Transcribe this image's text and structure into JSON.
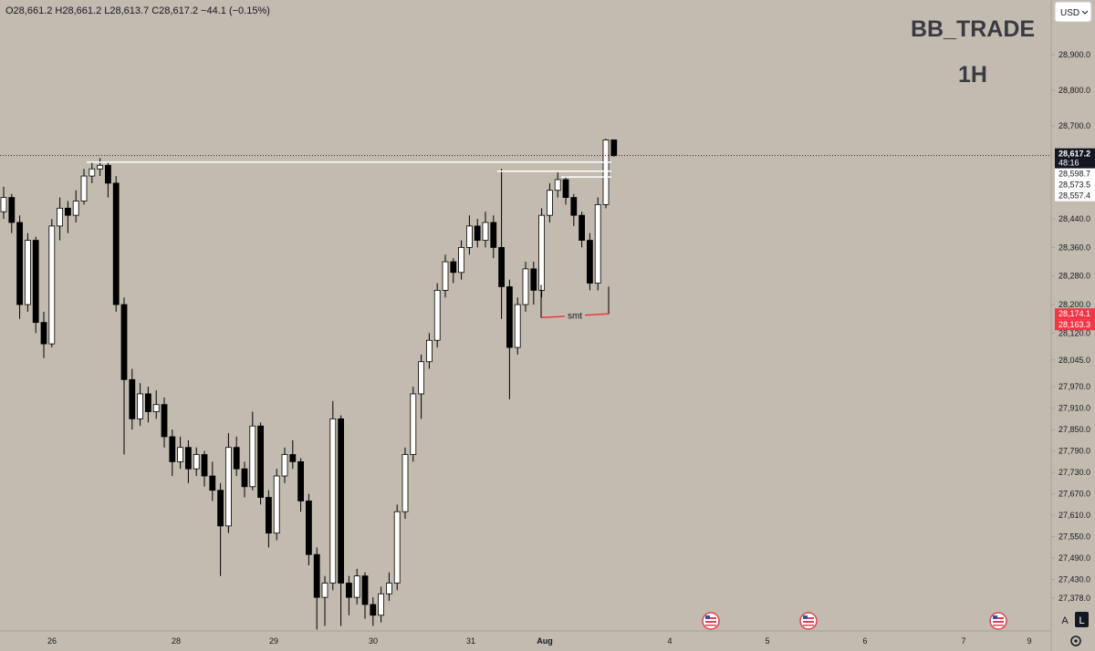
{
  "chart_data": {
    "type": "candlestick",
    "header": "O28,661.2 H28,661.2 L28,613.7 C28,617.2 −44.1 (−0.15%)",
    "watermark": {
      "title": "BB_TRADE",
      "interval": "1H"
    },
    "ylim": [
      27286,
      29053
    ],
    "yticks": [
      {
        "value": 28900,
        "label": "28,900.0"
      },
      {
        "value": 28800,
        "label": "28,800.0"
      },
      {
        "value": 28700,
        "label": "28,700.0"
      },
      {
        "value": 28440,
        "label": "28,440.0"
      },
      {
        "value": 28360,
        "label": "28,360.0"
      },
      {
        "value": 28280,
        "label": "28,280.0"
      },
      {
        "value": 28200,
        "label": "28,200.0"
      },
      {
        "value": 28120,
        "label": "28,120.0"
      },
      {
        "value": 28045,
        "label": "28,045.0"
      },
      {
        "value": 27970,
        "label": "27,970.0"
      },
      {
        "value": 27910,
        "label": "27,910.0"
      },
      {
        "value": 27850,
        "label": "27,850.0"
      },
      {
        "value": 27790,
        "label": "27,790.0"
      },
      {
        "value": 27730,
        "label": "27,730.0"
      },
      {
        "value": 27670,
        "label": "27,670.0"
      },
      {
        "value": 27610,
        "label": "27,610.0"
      },
      {
        "value": 27550,
        "label": "27,550.0"
      },
      {
        "value": 27490,
        "label": "27,490.0"
      },
      {
        "value": 27430,
        "label": "27,430.0"
      },
      {
        "value": 27378,
        "label": "27,378.0"
      }
    ],
    "x_labels": [
      "26",
      "28",
      "29",
      "30",
      "31",
      "Aug",
      "4",
      "5",
      "6",
      "7",
      "9"
    ],
    "up_color": "#ffffff",
    "down_color": "#000000",
    "candles": [
      [
        28460,
        28530,
        28440,
        28500
      ],
      [
        28500,
        28510,
        28400,
        28430
      ],
      [
        28430,
        28450,
        28160,
        28200
      ],
      [
        28200,
        28400,
        28180,
        28380
      ],
      [
        28380,
        28390,
        28120,
        28150
      ],
      [
        28150,
        28180,
        28050,
        28090
      ],
      [
        28090,
        28440,
        28080,
        28420
      ],
      [
        28420,
        28500,
        28380,
        28470
      ],
      [
        28470,
        28490,
        28400,
        28450
      ],
      [
        28450,
        28520,
        28430,
        28490
      ],
      [
        28490,
        28580,
        28480,
        28560
      ],
      [
        28560,
        28600,
        28540,
        28580
      ],
      [
        28580,
        28610,
        28560,
        28590
      ],
      [
        28590,
        28600,
        28500,
        28540
      ],
      [
        28540,
        28560,
        28180,
        28200
      ],
      [
        28200,
        28220,
        27780,
        27990
      ],
      [
        27990,
        28020,
        27850,
        27880
      ],
      [
        27880,
        27980,
        27860,
        27950
      ],
      [
        27950,
        27970,
        27870,
        27900
      ],
      [
        27900,
        27960,
        27880,
        27920
      ],
      [
        27920,
        27940,
        27800,
        27830
      ],
      [
        27830,
        27850,
        27720,
        27760
      ],
      [
        27760,
        27830,
        27740,
        27800
      ],
      [
        27800,
        27820,
        27700,
        27740
      ],
      [
        27740,
        27800,
        27720,
        27780
      ],
      [
        27780,
        27790,
        27690,
        27720
      ],
      [
        27720,
        27760,
        27650,
        27680
      ],
      [
        27680,
        27700,
        27440,
        27580
      ],
      [
        27580,
        27840,
        27560,
        27800
      ],
      [
        27800,
        27830,
        27720,
        27740
      ],
      [
        27740,
        27760,
        27660,
        27690
      ],
      [
        27690,
        27900,
        27680,
        27860
      ],
      [
        27860,
        27870,
        27640,
        27660
      ],
      [
        27660,
        27680,
        27520,
        27560
      ],
      [
        27560,
        27740,
        27540,
        27720
      ],
      [
        27720,
        27800,
        27700,
        27780
      ],
      [
        27780,
        27820,
        27740,
        27760
      ],
      [
        27760,
        27770,
        27620,
        27650
      ],
      [
        27650,
        27670,
        27470,
        27500
      ],
      [
        27500,
        27520,
        27290,
        27380
      ],
      [
        27380,
        27440,
        27300,
        27420
      ],
      [
        27420,
        27930,
        27400,
        27880
      ],
      [
        27880,
        27890,
        27300,
        27420
      ],
      [
        27420,
        27440,
        27330,
        27380
      ],
      [
        27380,
        27460,
        27360,
        27440
      ],
      [
        27440,
        27450,
        27320,
        27360
      ],
      [
        27360,
        27380,
        27300,
        27330
      ],
      [
        27330,
        27410,
        27310,
        27390
      ],
      [
        27390,
        27450,
        27370,
        27420
      ],
      [
        27420,
        27640,
        27400,
        27620
      ],
      [
        27620,
        27800,
        27600,
        27780
      ],
      [
        27780,
        27970,
        27760,
        27950
      ],
      [
        27950,
        28060,
        27880,
        28040
      ],
      [
        28040,
        28120,
        28020,
        28100
      ],
      [
        28100,
        28260,
        28080,
        28240
      ],
      [
        28240,
        28340,
        28220,
        28320
      ],
      [
        28320,
        28330,
        28260,
        28290
      ],
      [
        28290,
        28380,
        28270,
        28360
      ],
      [
        28360,
        28450,
        28340,
        28420
      ],
      [
        28420,
        28440,
        28360,
        28380
      ],
      [
        28380,
        28460,
        28360,
        28430
      ],
      [
        28430,
        28450,
        28330,
        28360
      ],
      [
        28360,
        28580,
        28160,
        28250
      ],
      [
        28250,
        28270,
        27935,
        28080
      ],
      [
        28080,
        28220,
        28060,
        28200
      ],
      [
        28200,
        28320,
        28180,
        28300
      ],
      [
        28300,
        28320,
        28200,
        28240
      ],
      [
        28240,
        28470,
        28220,
        28450
      ],
      [
        28450,
        28540,
        28430,
        28520
      ],
      [
        28520,
        28570,
        28500,
        28550
      ],
      [
        28550,
        28560,
        28480,
        28500
      ],
      [
        28500,
        28510,
        28420,
        28450
      ],
      [
        28450,
        28460,
        28360,
        28380
      ],
      [
        28380,
        28400,
        28240,
        28260
      ],
      [
        28260,
        28500,
        28240,
        28480
      ],
      [
        28480,
        28665,
        28470,
        28661.2
      ],
      [
        28661.2,
        28661.2,
        28613.7,
        28617.2
      ]
    ],
    "last_price": {
      "value": 28617.2,
      "label": "28,617.2",
      "countdown": "48:16"
    },
    "price_labels": [
      {
        "value": 28598.7,
        "label": "28,598.7",
        "color": "#ffffff"
      },
      {
        "value": 28573.5,
        "label": "28,573.5",
        "color": "#ffffff"
      },
      {
        "value": 28557.4,
        "label": "28,557.4",
        "color": "#ffffff"
      },
      {
        "value": 28174.1,
        "label": "28,174.1",
        "color": "#f23645"
      },
      {
        "value": 28163.3,
        "label": "28,163.3",
        "color": "#f23645"
      }
    ],
    "smt_label": "smt"
  },
  "ui": {
    "currency": "USD",
    "buttons": [
      "A",
      "L"
    ]
  }
}
